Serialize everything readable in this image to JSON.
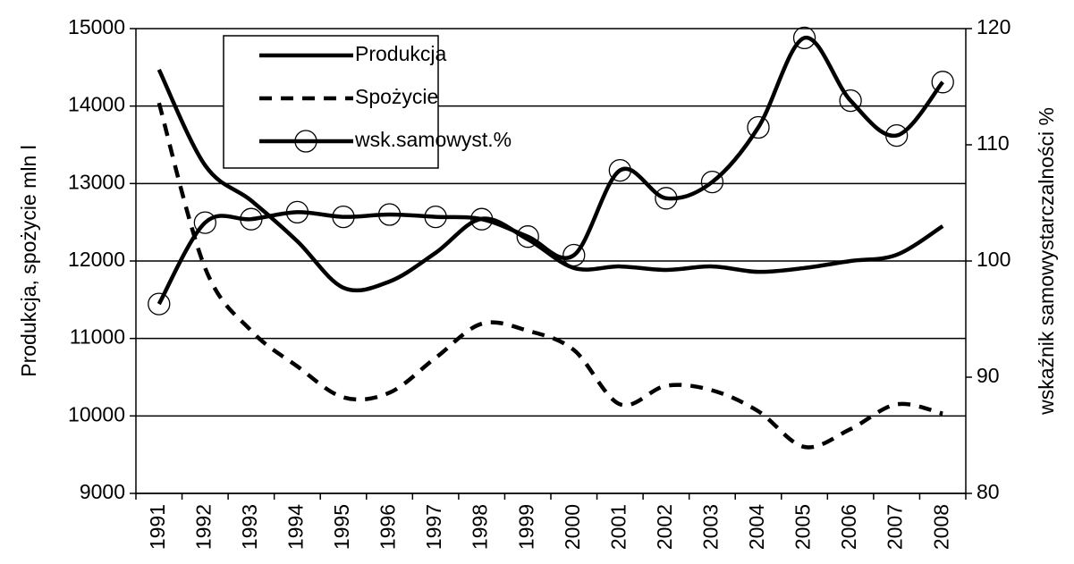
{
  "chart_data": {
    "type": "line",
    "ylabel": "Produkcja, spożycie mln l",
    "y2label": "wskaźnik samowystarczalności %",
    "categories": [
      "1991",
      "1992",
      "1993",
      "1994",
      "1995",
      "1996",
      "1997",
      "1998",
      "1999",
      "2000",
      "2001",
      "2002",
      "2003",
      "2004",
      "2005",
      "2006",
      "2007",
      "2008"
    ],
    "series": [
      {
        "name": "Produkcja",
        "color": "#000000",
        "dashed": false,
        "values": [
          14470,
          13235,
          12780,
          12255,
          11655,
          11735,
          12105,
          12545,
          12280,
          11910,
          11930,
          11885,
          11930,
          11860,
          11910,
          12000,
          12080,
          12450
        ]
      },
      {
        "name": "Spożycie",
        "color": "#000000",
        "dashed": true,
        "values": [
          14040,
          11910,
          11100,
          10640,
          10240,
          10300,
          10750,
          11190,
          11100,
          10850,
          10150,
          10390,
          10330,
          10060,
          9600,
          9830,
          10150,
          10030
        ]
      },
      {
        "name": "wsk.samowyst.%",
        "color": "#000000",
        "dashed": false,
        "marker": "circle",
        "axis": "y2",
        "values": [
          96.3,
          103.3,
          103.6,
          104.2,
          103.8,
          104.0,
          103.8,
          103.6,
          102.1,
          100.5,
          107.8,
          105.4,
          106.8,
          111.5,
          119.2,
          113.8,
          110.8,
          115.4
        ]
      }
    ],
    "ylim": [
      9000,
      15000
    ],
    "yticks": [
      9000,
      10000,
      11000,
      12000,
      13000,
      14000,
      15000
    ],
    "y2lim": [
      80,
      120
    ],
    "y2ticks": [
      80,
      90,
      100,
      110,
      120
    ],
    "grid": true,
    "legend": "upper left"
  }
}
